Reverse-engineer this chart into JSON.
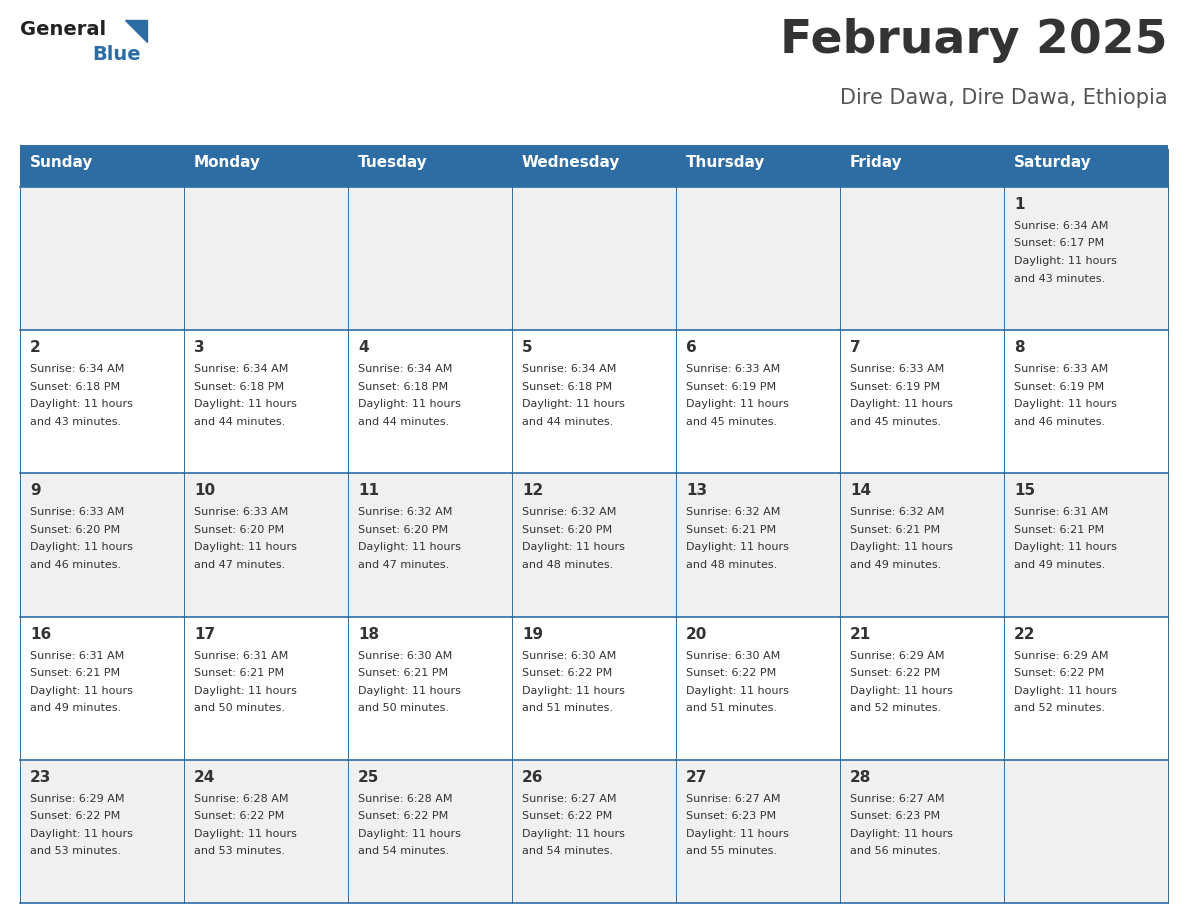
{
  "title": "February 2025",
  "subtitle": "Dire Dawa, Dire Dawa, Ethiopia",
  "days_of_week": [
    "Sunday",
    "Monday",
    "Tuesday",
    "Wednesday",
    "Thursday",
    "Friday",
    "Saturday"
  ],
  "header_bg_color": "#2E6DA4",
  "header_text_color": "#FFFFFF",
  "cell_bg_color_odd": "#F0F0F0",
  "cell_bg_color_even": "#FFFFFF",
  "border_color": "#2E6DA4",
  "text_color": "#333333",
  "title_color": "#333333",
  "subtitle_color": "#555555",
  "logo_general_color": "#222222",
  "logo_blue_color": "#2E6DA4",
  "calendar_data": [
    [
      null,
      null,
      null,
      null,
      null,
      null,
      {
        "day": 1,
        "sunrise": "6:34 AM",
        "sunset": "6:17 PM",
        "daylight": "11 hours and 43 minutes."
      }
    ],
    [
      {
        "day": 2,
        "sunrise": "6:34 AM",
        "sunset": "6:18 PM",
        "daylight": "11 hours and 43 minutes."
      },
      {
        "day": 3,
        "sunrise": "6:34 AM",
        "sunset": "6:18 PM",
        "daylight": "11 hours and 44 minutes."
      },
      {
        "day": 4,
        "sunrise": "6:34 AM",
        "sunset": "6:18 PM",
        "daylight": "11 hours and 44 minutes."
      },
      {
        "day": 5,
        "sunrise": "6:34 AM",
        "sunset": "6:18 PM",
        "daylight": "11 hours and 44 minutes."
      },
      {
        "day": 6,
        "sunrise": "6:33 AM",
        "sunset": "6:19 PM",
        "daylight": "11 hours and 45 minutes."
      },
      {
        "day": 7,
        "sunrise": "6:33 AM",
        "sunset": "6:19 PM",
        "daylight": "11 hours and 45 minutes."
      },
      {
        "day": 8,
        "sunrise": "6:33 AM",
        "sunset": "6:19 PM",
        "daylight": "11 hours and 46 minutes."
      }
    ],
    [
      {
        "day": 9,
        "sunrise": "6:33 AM",
        "sunset": "6:20 PM",
        "daylight": "11 hours and 46 minutes."
      },
      {
        "day": 10,
        "sunrise": "6:33 AM",
        "sunset": "6:20 PM",
        "daylight": "11 hours and 47 minutes."
      },
      {
        "day": 11,
        "sunrise": "6:32 AM",
        "sunset": "6:20 PM",
        "daylight": "11 hours and 47 minutes."
      },
      {
        "day": 12,
        "sunrise": "6:32 AM",
        "sunset": "6:20 PM",
        "daylight": "11 hours and 48 minutes."
      },
      {
        "day": 13,
        "sunrise": "6:32 AM",
        "sunset": "6:21 PM",
        "daylight": "11 hours and 48 minutes."
      },
      {
        "day": 14,
        "sunrise": "6:32 AM",
        "sunset": "6:21 PM",
        "daylight": "11 hours and 49 minutes."
      },
      {
        "day": 15,
        "sunrise": "6:31 AM",
        "sunset": "6:21 PM",
        "daylight": "11 hours and 49 minutes."
      }
    ],
    [
      {
        "day": 16,
        "sunrise": "6:31 AM",
        "sunset": "6:21 PM",
        "daylight": "11 hours and 49 minutes."
      },
      {
        "day": 17,
        "sunrise": "6:31 AM",
        "sunset": "6:21 PM",
        "daylight": "11 hours and 50 minutes."
      },
      {
        "day": 18,
        "sunrise": "6:30 AM",
        "sunset": "6:21 PM",
        "daylight": "11 hours and 50 minutes."
      },
      {
        "day": 19,
        "sunrise": "6:30 AM",
        "sunset": "6:22 PM",
        "daylight": "11 hours and 51 minutes."
      },
      {
        "day": 20,
        "sunrise": "6:30 AM",
        "sunset": "6:22 PM",
        "daylight": "11 hours and 51 minutes."
      },
      {
        "day": 21,
        "sunrise": "6:29 AM",
        "sunset": "6:22 PM",
        "daylight": "11 hours and 52 minutes."
      },
      {
        "day": 22,
        "sunrise": "6:29 AM",
        "sunset": "6:22 PM",
        "daylight": "11 hours and 52 minutes."
      }
    ],
    [
      {
        "day": 23,
        "sunrise": "6:29 AM",
        "sunset": "6:22 PM",
        "daylight": "11 hours and 53 minutes."
      },
      {
        "day": 24,
        "sunrise": "6:28 AM",
        "sunset": "6:22 PM",
        "daylight": "11 hours and 53 minutes."
      },
      {
        "day": 25,
        "sunrise": "6:28 AM",
        "sunset": "6:22 PM",
        "daylight": "11 hours and 54 minutes."
      },
      {
        "day": 26,
        "sunrise": "6:27 AM",
        "sunset": "6:22 PM",
        "daylight": "11 hours and 54 minutes."
      },
      {
        "day": 27,
        "sunrise": "6:27 AM",
        "sunset": "6:23 PM",
        "daylight": "11 hours and 55 minutes."
      },
      {
        "day": 28,
        "sunrise": "6:27 AM",
        "sunset": "6:23 PM",
        "daylight": "11 hours and 56 minutes."
      },
      null
    ]
  ]
}
